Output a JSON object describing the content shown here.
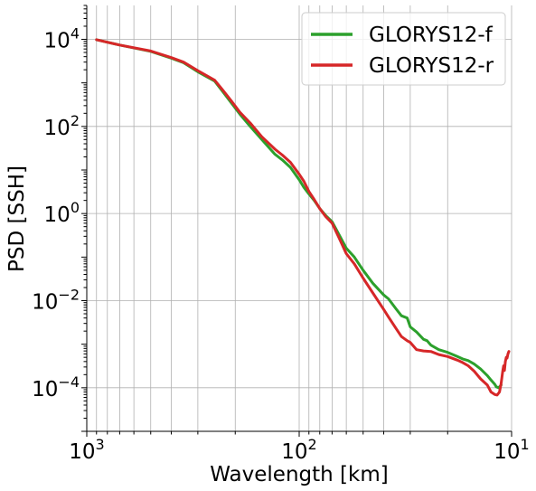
{
  "chart_data": {
    "type": "line",
    "xlabel": "Wavelength [km]",
    "ylabel": "PSD [SSH]",
    "x_scale": "log",
    "x_reversed": true,
    "y_scale": "log",
    "xlim": [
      1000,
      10
    ],
    "ylim": [
      1e-05,
      60000
    ],
    "grid": true,
    "legend_position": "top-right",
    "x_ticks": [
      {
        "value": 1000,
        "base": "10",
        "exp": "3"
      },
      {
        "value": 100,
        "base": "10",
        "exp": "2"
      },
      {
        "value": 10,
        "base": "10",
        "exp": "1"
      }
    ],
    "y_ticks": [
      {
        "value": 10000,
        "base": "10",
        "exp": "4"
      },
      {
        "value": 100,
        "base": "10",
        "exp": "2"
      },
      {
        "value": 1,
        "base": "10",
        "exp": "0"
      },
      {
        "value": 0.01,
        "base": "10",
        "exp": "−2"
      },
      {
        "value": 0.0001,
        "base": "10",
        "exp": "−4"
      }
    ],
    "series": [
      {
        "name": "GLORYS12-f",
        "color": "#2ca02c",
        "points": [
          [
            900,
            9800
          ],
          [
            700,
            7400
          ],
          [
            500,
            5300
          ],
          [
            400,
            3700
          ],
          [
            350,
            2900
          ],
          [
            300,
            1800
          ],
          [
            250,
            1100
          ],
          [
            230,
            650
          ],
          [
            210,
            360
          ],
          [
            190,
            190
          ],
          [
            170,
            100
          ],
          [
            150,
            50
          ],
          [
            130,
            23
          ],
          [
            120,
            17
          ],
          [
            110,
            11.5
          ],
          [
            100,
            6
          ],
          [
            95,
            4
          ],
          [
            90,
            2.8
          ],
          [
            85,
            2
          ],
          [
            80,
            1.3
          ],
          [
            75,
            0.9
          ],
          [
            70,
            0.65
          ],
          [
            65,
            0.33
          ],
          [
            60,
            0.16
          ],
          [
            55,
            0.1
          ],
          [
            50,
            0.05
          ],
          [
            45,
            0.025
          ],
          [
            40,
            0.0135
          ],
          [
            38,
            0.011
          ],
          [
            35,
            0.0065
          ],
          [
            33,
            0.0045
          ],
          [
            31,
            0.004
          ],
          [
            30,
            0.0025
          ],
          [
            28,
            0.0019
          ],
          [
            26,
            0.0013
          ],
          [
            25,
            0.0012
          ],
          [
            24,
            0.00095
          ],
          [
            22,
            0.00075
          ],
          [
            20,
            0.00065
          ],
          [
            18,
            0.00052
          ],
          [
            17,
            0.00046
          ],
          [
            16,
            0.00042
          ],
          [
            15,
            0.00035
          ],
          [
            14,
            0.00027
          ],
          [
            13,
            0.00019
          ],
          [
            12.5,
            0.00015
          ],
          [
            12,
            0.00012
          ],
          [
            11.8,
            0.000105
          ],
          [
            11.5,
            0.0001
          ],
          [
            11.2,
            0.000115
          ]
        ]
      },
      {
        "name": "GLORYS12-r",
        "color": "#d62728",
        "points": [
          [
            900,
            9800
          ],
          [
            700,
            7400
          ],
          [
            500,
            5400
          ],
          [
            400,
            3800
          ],
          [
            350,
            3000
          ],
          [
            300,
            1900
          ],
          [
            250,
            1150
          ],
          [
            230,
            700
          ],
          [
            210,
            400
          ],
          [
            190,
            210
          ],
          [
            170,
            120
          ],
          [
            150,
            58
          ],
          [
            130,
            30
          ],
          [
            120,
            22
          ],
          [
            110,
            15
          ],
          [
            100,
            8
          ],
          [
            95,
            5.5
          ],
          [
            90,
            3.2
          ],
          [
            85,
            2.1
          ],
          [
            80,
            1.3
          ],
          [
            75,
            0.85
          ],
          [
            70,
            0.6
          ],
          [
            65,
            0.28
          ],
          [
            60,
            0.12
          ],
          [
            55,
            0.07
          ],
          [
            50,
            0.033
          ],
          [
            45,
            0.015
          ],
          [
            40,
            0.0063
          ],
          [
            38,
            0.0042
          ],
          [
            35,
            0.0023
          ],
          [
            33,
            0.0015
          ],
          [
            31,
            0.0012
          ],
          [
            30,
            0.0011
          ],
          [
            28,
            0.00075
          ],
          [
            26,
            0.0007
          ],
          [
            24,
            0.00068
          ],
          [
            22,
            0.00058
          ],
          [
            20,
            0.00052
          ],
          [
            18,
            0.00043
          ],
          [
            17,
            0.00038
          ],
          [
            16,
            0.00032
          ],
          [
            15,
            0.00024
          ],
          [
            14,
            0.00016
          ],
          [
            13,
            0.000115
          ],
          [
            12.5,
            8e-05
          ],
          [
            12,
            7e-05
          ],
          [
            11.7,
            6.8e-05
          ],
          [
            11.4,
            8e-05
          ],
          [
            11.2,
            0.000125
          ],
          [
            11.0,
            0.00025
          ],
          [
            10.9,
            0.00032
          ],
          [
            10.8,
            0.00025
          ],
          [
            10.7,
            0.0004
          ],
          [
            10.6,
            0.0005
          ],
          [
            10.5,
            0.00048
          ],
          [
            10.4,
            0.0006
          ],
          [
            10.3,
            0.00068
          ]
        ]
      }
    ]
  }
}
